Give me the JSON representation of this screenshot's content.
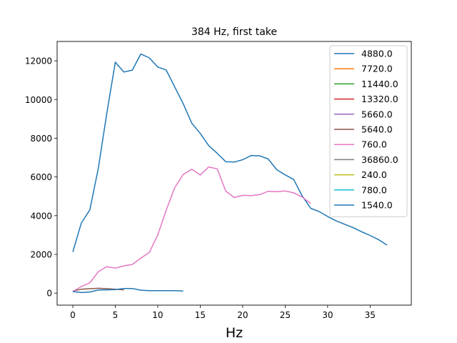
{
  "chart_data": {
    "type": "line",
    "title": "384 Hz, first take",
    "xlabel": "Hz",
    "ylabel": "",
    "xlim": [
      -1.85,
      39.85
    ],
    "ylim": [
      -620,
      13000
    ],
    "xticks": [
      0,
      5,
      10,
      15,
      20,
      25,
      30,
      35
    ],
    "yticks": [
      0,
      2000,
      4000,
      6000,
      8000,
      10000,
      12000
    ],
    "grid": false,
    "legend_position": "top-right",
    "series": [
      {
        "name": "4880.0",
        "color": "#1f77b4",
        "x": [
          0,
          1,
          2,
          3,
          4,
          5,
          6,
          7,
          8,
          9,
          10,
          11,
          12,
          13,
          14,
          15,
          16,
          17,
          18,
          19,
          20,
          21,
          22,
          23,
          24,
          25,
          26,
          27,
          28,
          29,
          30,
          31,
          32,
          33,
          34,
          35,
          36,
          37
        ],
        "y": [
          2130,
          3620,
          4300,
          6450,
          9300,
          11930,
          11420,
          11520,
          12350,
          12150,
          11680,
          11520,
          10650,
          9780,
          8780,
          8250,
          7620,
          7220,
          6790,
          6770,
          6890,
          7110,
          7090,
          6930,
          6380,
          6110,
          5870,
          5020,
          4380,
          4210,
          3960,
          3730,
          3560,
          3380,
          3170,
          2980,
          2760,
          2480
        ]
      },
      {
        "name": "7720.0",
        "color": "#ff7f0e",
        "x": [],
        "y": []
      },
      {
        "name": "11440.0",
        "color": "#2ca02c",
        "x": [],
        "y": []
      },
      {
        "name": "13320.0",
        "color": "#d62728",
        "x": [],
        "y": []
      },
      {
        "name": "5660.0",
        "color": "#9467bd",
        "x": [],
        "y": []
      },
      {
        "name": "5640.0",
        "color": "#8c564b",
        "x": [
          0,
          1,
          2,
          3,
          4,
          5,
          6
        ],
        "y": [
          110,
          200,
          230,
          250,
          230,
          200,
          170
        ]
      },
      {
        "name": "760.0",
        "color": "#e377c2",
        "x": [
          0,
          1,
          2,
          3,
          4,
          5,
          6,
          7,
          8,
          9,
          10,
          11,
          12,
          13,
          14,
          15,
          16,
          17,
          18,
          19,
          20,
          21,
          22,
          23,
          24,
          25,
          26,
          27,
          28
        ],
        "y": [
          80,
          340,
          530,
          1110,
          1370,
          1290,
          1410,
          1480,
          1810,
          2100,
          3000,
          4290,
          5450,
          6130,
          6400,
          6100,
          6520,
          6420,
          5270,
          4940,
          5050,
          5040,
          5090,
          5260,
          5240,
          5280,
          5180,
          4960,
          4630
        ]
      },
      {
        "name": "36860.0",
        "color": "#7f7f7f",
        "x": [],
        "y": []
      },
      {
        "name": "240.0",
        "color": "#bcbd22",
        "x": [],
        "y": []
      },
      {
        "name": "780.0",
        "color": "#17becf",
        "x": [],
        "y": []
      },
      {
        "name": "1540.0",
        "color": "#1f77b4",
        "x": [
          0,
          1,
          2,
          3,
          4,
          5,
          6,
          7,
          8,
          9,
          10,
          11,
          12,
          13
        ],
        "y": [
          80,
          30,
          60,
          160,
          170,
          180,
          240,
          240,
          150,
          130,
          130,
          130,
          130,
          110
        ]
      }
    ]
  }
}
